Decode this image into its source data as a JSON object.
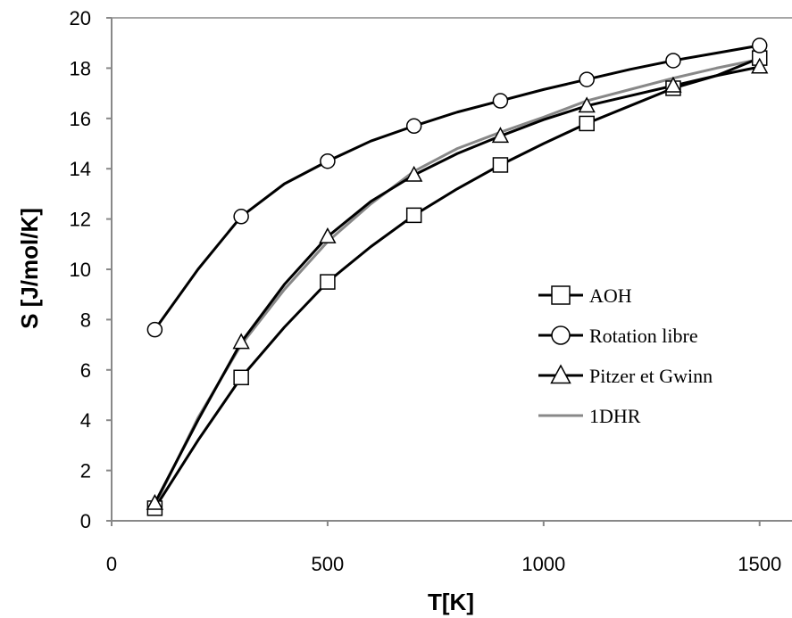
{
  "chart_data": {
    "type": "line",
    "title": "",
    "xlabel": "T[K]",
    "ylabel": "S [J/mol/K]",
    "xlim": [
      0,
      1575
    ],
    "ylim": [
      0,
      20
    ],
    "xticks": [
      "0",
      "500",
      "1000",
      "1500"
    ],
    "yticks": [
      "0",
      "2",
      "4",
      "6",
      "8",
      "10",
      "12",
      "14",
      "16",
      "18",
      "20"
    ],
    "grid": false,
    "legend_position": "right",
    "series": [
      {
        "name": "AOH",
        "marker": "square",
        "color": "#000000",
        "x": [
          100,
          200,
          300,
          400,
          500,
          600,
          700,
          800,
          900,
          1000,
          1100,
          1200,
          1300,
          1400,
          1500
        ],
        "y": [
          0.5,
          3.2,
          5.7,
          7.7,
          9.5,
          10.9,
          12.15,
          13.2,
          14.15,
          15.0,
          15.8,
          16.5,
          17.2,
          17.7,
          18.4
        ],
        "marked_x": [
          100,
          300,
          500,
          700,
          900,
          1100,
          1300,
          1500
        ]
      },
      {
        "name": "Rotation libre",
        "marker": "circle",
        "color": "#000000",
        "x": [
          100,
          200,
          300,
          400,
          500,
          600,
          700,
          800,
          900,
          1000,
          1100,
          1200,
          1300,
          1400,
          1500
        ],
        "y": [
          7.6,
          10.0,
          12.1,
          13.4,
          14.3,
          15.1,
          15.7,
          16.25,
          16.7,
          17.15,
          17.55,
          17.95,
          18.3,
          18.6,
          18.9
        ],
        "marked_x": [
          100,
          300,
          500,
          700,
          900,
          1100,
          1300,
          1500
        ]
      },
      {
        "name": "Pitzer et Gwinn",
        "marker": "triangle",
        "color": "#000000",
        "x": [
          100,
          200,
          300,
          400,
          500,
          600,
          700,
          800,
          900,
          1000,
          1100,
          1200,
          1300,
          1400,
          1500
        ],
        "y": [
          0.7,
          4.0,
          7.1,
          9.4,
          11.3,
          12.7,
          13.75,
          14.6,
          15.3,
          15.95,
          16.5,
          16.9,
          17.3,
          17.7,
          18.05
        ],
        "marked_x": [
          100,
          300,
          500,
          700,
          900,
          1100,
          1300,
          1500
        ]
      },
      {
        "name": "1DHR",
        "marker": "none",
        "color": "#888888",
        "x": [
          100,
          200,
          300,
          400,
          500,
          600,
          700,
          800,
          900,
          1000,
          1100,
          1200,
          1300,
          1400,
          1500
        ],
        "y": [
          0.6,
          4.1,
          7.0,
          9.2,
          11.1,
          12.6,
          13.9,
          14.8,
          15.45,
          16.05,
          16.7,
          17.15,
          17.6,
          18.0,
          18.35
        ],
        "marked_x": []
      }
    ]
  }
}
